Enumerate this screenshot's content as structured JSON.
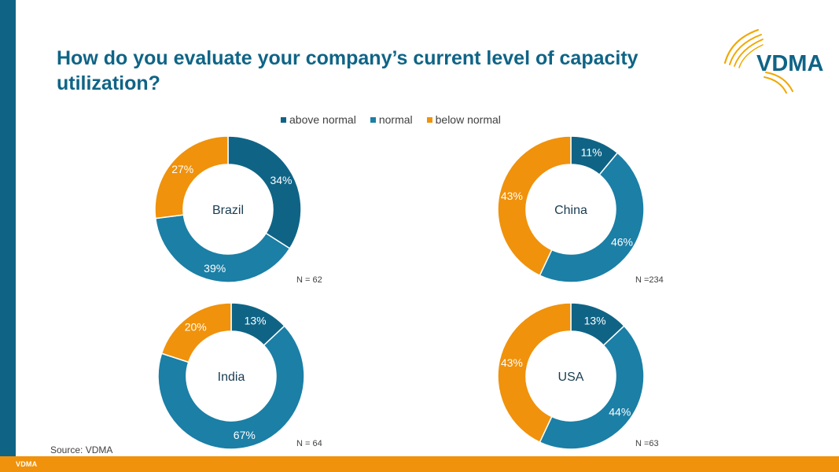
{
  "title": "How do you evaluate your company’s current level of capacity utilization?",
  "logo_text": "VDMA",
  "footer_brand": "VDMA",
  "source": "Source: VDMA",
  "colors": {
    "above_normal": "#0f6486",
    "normal": "#1b7fa6",
    "below_normal": "#f0920b",
    "accent_bar": "#0f6486",
    "footer_bar": "#f0920b"
  },
  "legend": [
    {
      "label": "above normal",
      "color": "#0f6486"
    },
    {
      "label": "normal",
      "color": "#1b7fa6"
    },
    {
      "label": "below normal",
      "color": "#f0920b"
    }
  ],
  "chart_data": [
    {
      "type": "pie",
      "title": "Brazil",
      "n_label": "N = 62",
      "categories": [
        "above normal",
        "normal",
        "below normal"
      ],
      "values": [
        34,
        39,
        27
      ]
    },
    {
      "type": "pie",
      "title": "China",
      "n_label": "N =234",
      "categories": [
        "above normal",
        "normal",
        "below normal"
      ],
      "values": [
        11,
        46,
        43
      ]
    },
    {
      "type": "pie",
      "title": "India",
      "n_label": "N = 64",
      "categories": [
        "above normal",
        "normal",
        "below normal"
      ],
      "values": [
        13,
        67,
        20
      ]
    },
    {
      "type": "pie",
      "title": "USA",
      "n_label": "N =63",
      "categories": [
        "above normal",
        "normal",
        "below normal"
      ],
      "values": [
        13,
        44,
        43
      ]
    }
  ]
}
